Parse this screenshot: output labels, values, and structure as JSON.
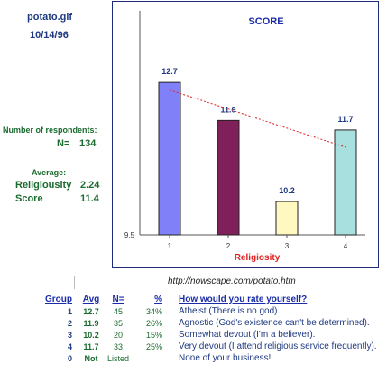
{
  "file": {
    "name": "potato.gif",
    "date": "10/14/96"
  },
  "stats": {
    "respondents_label": "Number of respondents:",
    "n_label": "N=",
    "n_value": "134",
    "average_label": "Average:",
    "religiousity_label": "Religiousity",
    "religiousity_value": "2.24",
    "score_label": "Score",
    "score_value": "11.4"
  },
  "chart_data": {
    "type": "bar",
    "title": "SCORE",
    "xlabel": "Religiosity",
    "ylabel": "",
    "categories": [
      "1",
      "2",
      "3",
      "4"
    ],
    "values": [
      12.7,
      11.9,
      10.2,
      11.7
    ],
    "value_labels": [
      "12.7",
      "11.9",
      "10.2",
      "11.7"
    ],
    "bar_colors": [
      "#8080f8",
      "#80205a",
      "#fff8c0",
      "#a8e0e0"
    ],
    "ylim": [
      9.5,
      14.2
    ],
    "y_tick_labels": [
      "9.5"
    ],
    "trendline": {
      "style": "dotted",
      "color": "#e02020",
      "values": [
        12.54,
        12.14,
        11.74,
        11.34
      ]
    },
    "grid": false,
    "legend": "none"
  },
  "url": "http://nowscape.com/potato.htm",
  "legend_table": {
    "headers": {
      "group": "Group",
      "avg": "Avg",
      "n": "N=",
      "pct": "%",
      "question": "How would you rate yourself?"
    },
    "rows": [
      {
        "group": "1",
        "avg": "12.7",
        "n": "45",
        "pct": "34%",
        "desc": "Atheist (There is no god)."
      },
      {
        "group": "2",
        "avg": "11.9",
        "n": "35",
        "pct": "26%",
        "desc": "Agnostic (God's existence can't be determined)."
      },
      {
        "group": "3",
        "avg": "10.2",
        "n": "20",
        "pct": "15%",
        "desc": "Somewhat devout (I'm a believer)."
      },
      {
        "group": "4",
        "avg": "11.7",
        "n": "33",
        "pct": "25%",
        "desc": "Very devout (I attend religious service frequently)."
      },
      {
        "group": "0",
        "avg": "Not",
        "n": "Listed",
        "pct": "",
        "desc": "None of your business!."
      }
    ]
  }
}
